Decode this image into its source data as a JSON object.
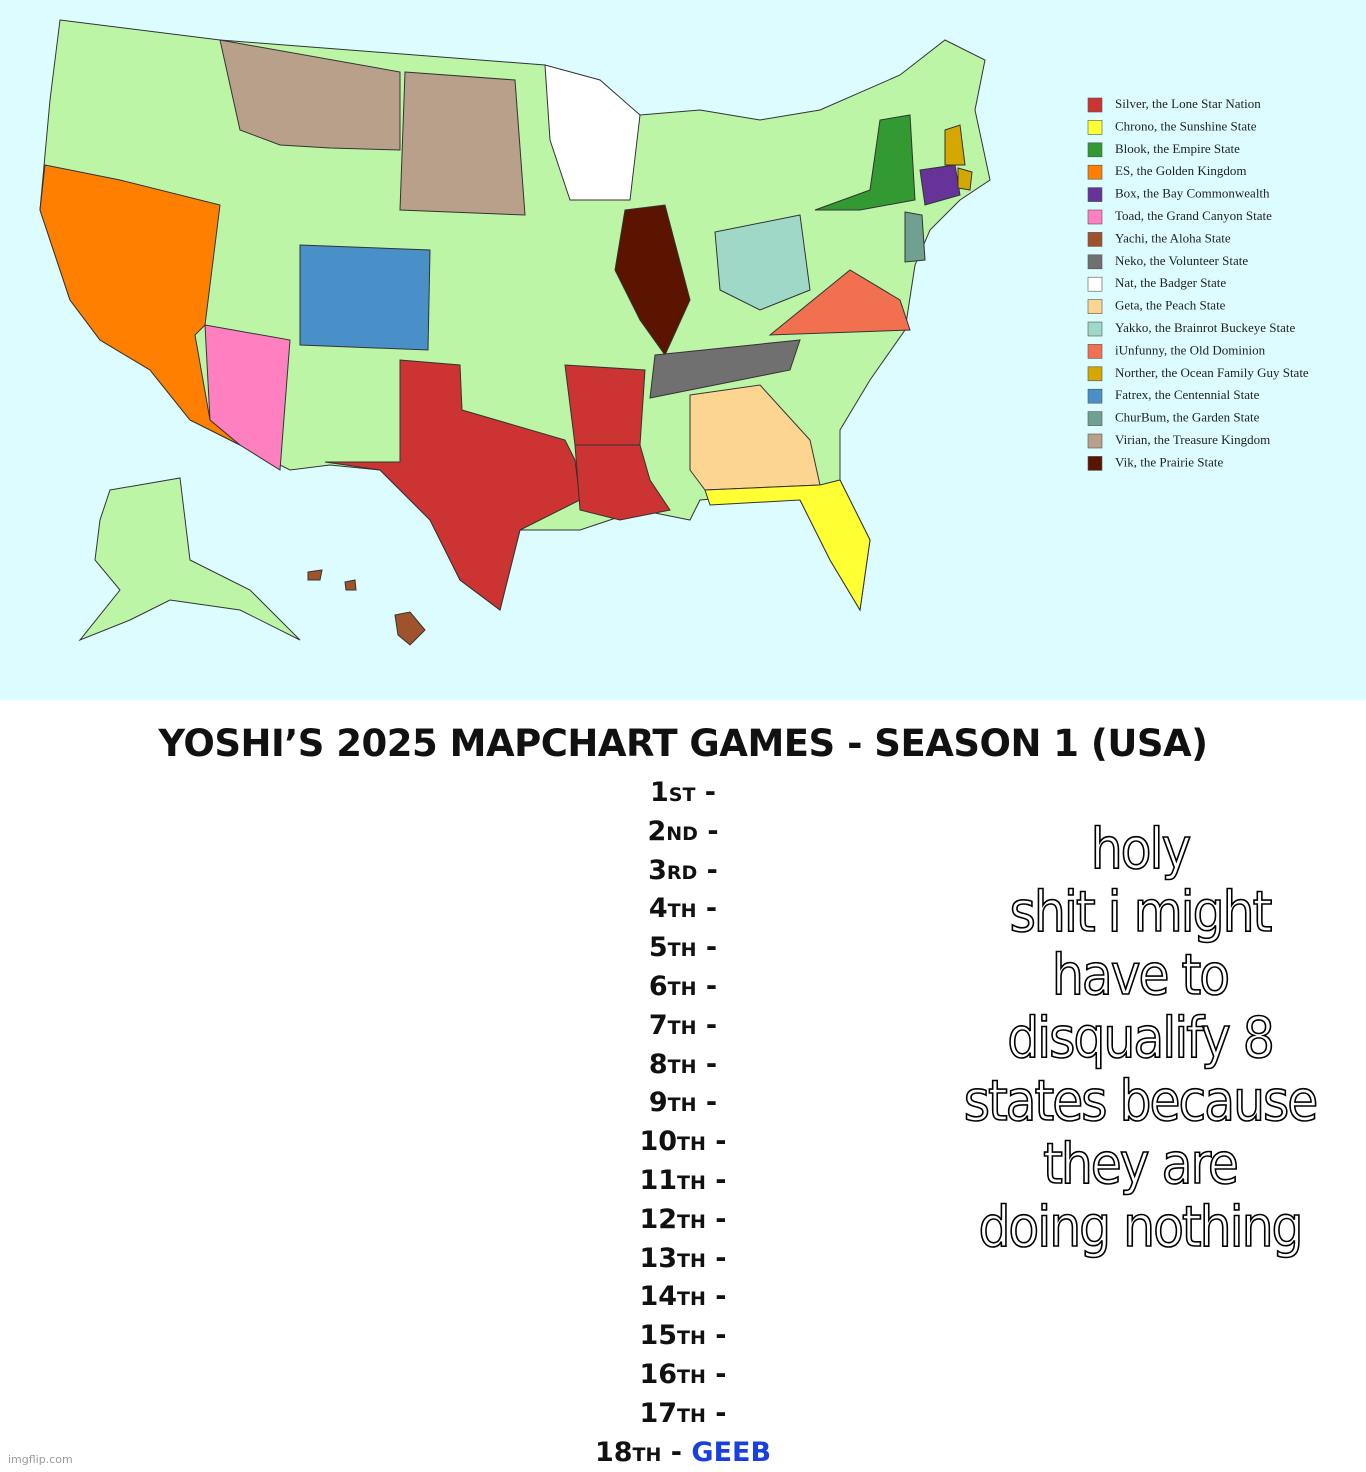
{
  "map": {
    "legend": [
      {
        "label": "Silver, the Lone Star Nation",
        "color": "#cc3333"
      },
      {
        "label": "Chrono, the Sunshine State",
        "color": "#ffff33"
      },
      {
        "label": "Blook, the Empire State",
        "color": "#339933"
      },
      {
        "label": "ES, the Golden Kingdom",
        "color": "#ff8000"
      },
      {
        "label": "Box, the Bay Commonwealth",
        "color": "#663399"
      },
      {
        "label": "Toad, the Grand Canyon State",
        "color": "#ff80c0"
      },
      {
        "label": "Yachi, the Aloha State",
        "color": "#a0522d"
      },
      {
        "label": "Neko, the Volunteer State",
        "color": "#707070"
      },
      {
        "label": "Nat, the Badger State",
        "color": "#ffffff"
      },
      {
        "label": "Geta, the Peach State",
        "color": "#fcd590"
      },
      {
        "label": "Yakko, the Brainrot Buckeye State",
        "color": "#a0d8c8"
      },
      {
        "label": "iUnfunny, the Old Dominion",
        "color": "#f07050"
      },
      {
        "label": "Norther, the Ocean Family Guy State",
        "color": "#d4a800"
      },
      {
        "label": "Fatrex, the Centennial State",
        "color": "#4a90c8"
      },
      {
        "label": "ChurBum, the Garden State",
        "color": "#70a090"
      },
      {
        "label": "Virian, the Treasure Kingdom",
        "color": "#b8a08a"
      },
      {
        "label": "Vik, the Prairie State",
        "color": "#5a1400"
      }
    ]
  },
  "title": "YOSHI’S 2025 MAPCHART GAMES - SEASON 1 (USA)",
  "rankings": [
    {
      "place": "1st -"
    },
    {
      "place": "2nd -"
    },
    {
      "place": "3rd -"
    },
    {
      "place": "4th -"
    },
    {
      "place": "5th -"
    },
    {
      "place": "6th -"
    },
    {
      "place": "7th -"
    },
    {
      "place": "8th -"
    },
    {
      "place": "9th -"
    },
    {
      "place": "10th -"
    },
    {
      "place": "11th -"
    },
    {
      "place": "12th -"
    },
    {
      "place": "13th -"
    },
    {
      "place": "14th -"
    },
    {
      "place": "15th -"
    },
    {
      "place": "16th -"
    },
    {
      "place": "17th -"
    },
    {
      "place": "18th -",
      "name": "GEEB"
    }
  ],
  "caption": [
    "holy",
    "shit i might",
    "have to",
    "disqualify 8",
    "states because",
    "they are",
    "doing nothing"
  ],
  "watermark": "imgflip.com"
}
